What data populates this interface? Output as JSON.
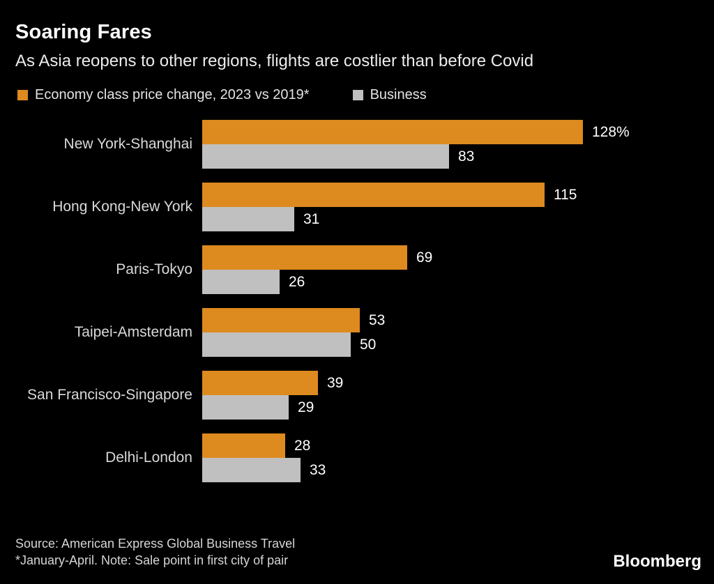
{
  "header": {
    "title": "Soaring Fares",
    "subtitle": "As Asia reopens to other regions, flights are costlier than before Covid"
  },
  "legend": {
    "economy_label": "Economy class price change, 2023 vs 2019*",
    "business_label": "Business"
  },
  "chart_data": {
    "type": "bar",
    "orientation": "horizontal",
    "categories": [
      "New York-Shanghai",
      "Hong Kong-New York",
      "Paris-Tokyo",
      "Taipei-Amsterdam",
      "San Francisco-Singapore",
      "Delhi-London"
    ],
    "series": [
      {
        "name": "Economy class price change, 2023 vs 2019*",
        "color": "#DD8A1F",
        "values": [
          128,
          115,
          69,
          53,
          39,
          28
        ],
        "labels": [
          "128%",
          "115",
          "69",
          "53",
          "39",
          "28"
        ]
      },
      {
        "name": "Business",
        "color": "#C0C0C0",
        "values": [
          83,
          31,
          26,
          50,
          29,
          33
        ],
        "labels": [
          "83",
          "31",
          "26",
          "50",
          "29",
          "33"
        ]
      }
    ],
    "xlim": [
      0,
      128
    ],
    "value_unit": "%",
    "grid": false,
    "legend_position": "top",
    "background": "#000000"
  },
  "footer": {
    "source": "Source: American Express Global Business Travel",
    "note": "*January-April. Note: Sale point in first city of pair",
    "brand": "Bloomberg"
  }
}
